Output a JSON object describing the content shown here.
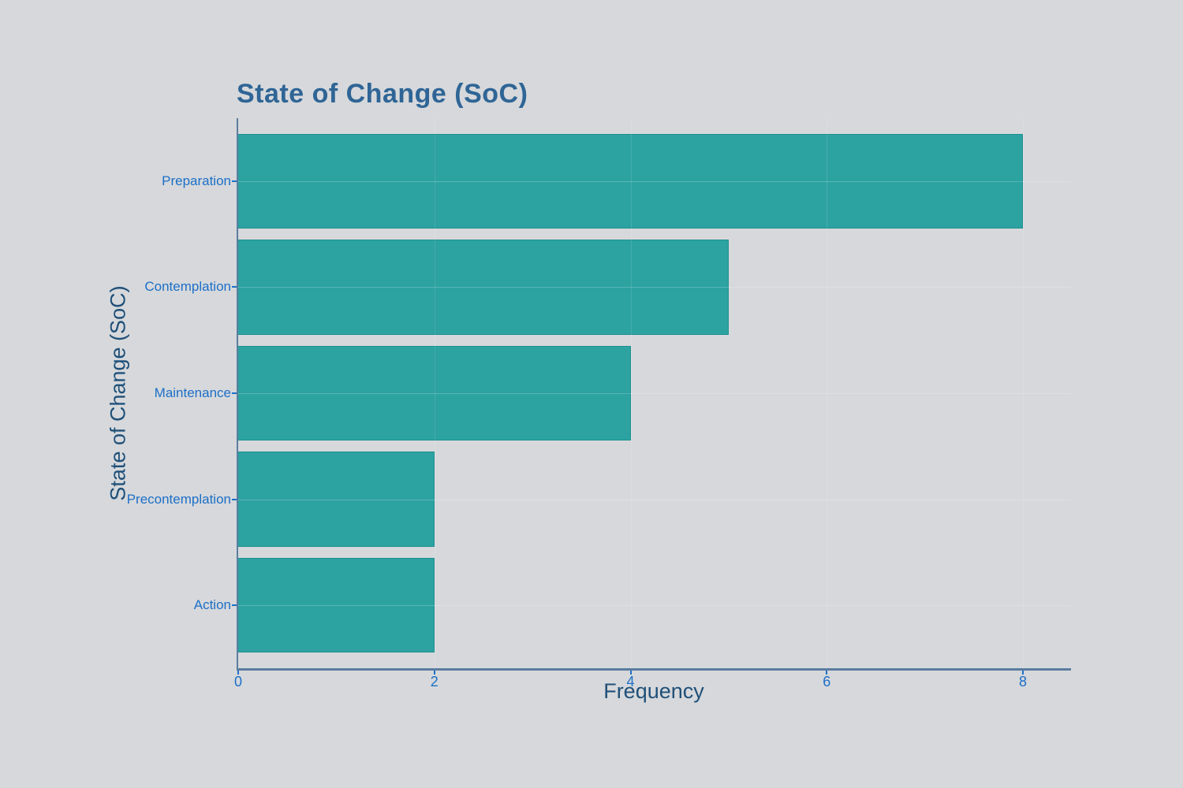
{
  "page": {
    "background_color": "#D6D8DB"
  },
  "chart_data": {
    "type": "bar",
    "orientation": "horizontal",
    "title": "State of Change (SoC)",
    "xlabel": "Frequency",
    "ylabel": "State of Change (SoC)",
    "categories": [
      "Preparation",
      "Contemplation",
      "Maintenance",
      "Precontemplation",
      "Action"
    ],
    "values": [
      8,
      5,
      4,
      2,
      2
    ],
    "xticks": [
      0,
      2,
      4,
      6,
      8
    ],
    "xlim": [
      0,
      8.49
    ],
    "legend": "none",
    "grid": "faint-white-lines",
    "colors": {
      "bar_fill": "#2CA2A1",
      "bar_edge": "#1F9192",
      "title": "#2F6596",
      "axis_title": "#1F5079",
      "tick_label": "#1C6FC8",
      "axis_line": "#5C7DA0",
      "background": "#D6D8DB"
    }
  }
}
